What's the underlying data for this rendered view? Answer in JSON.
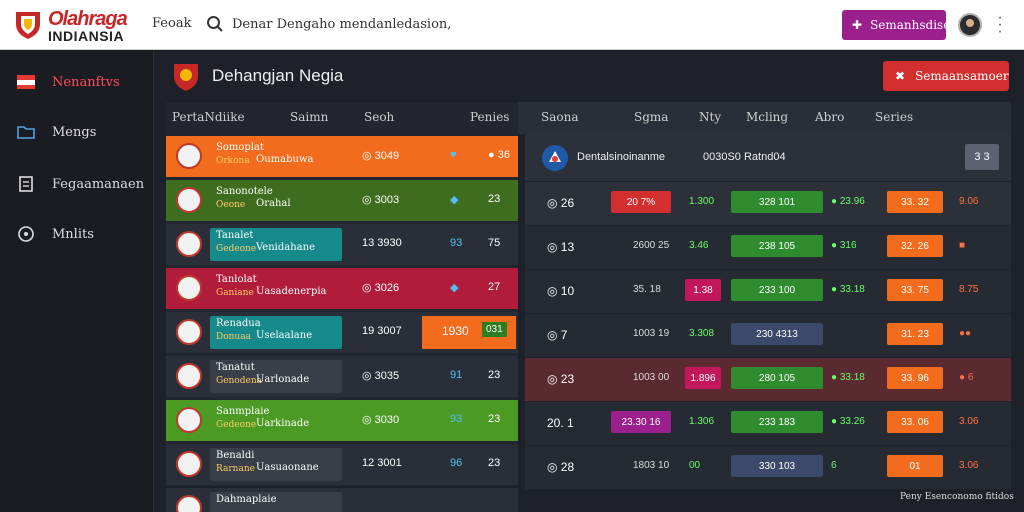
{
  "brand": {
    "line1": "Olahraga",
    "line2": "INDIANSIA"
  },
  "topnav": {
    "search_label": "Feoak",
    "search_value": "Denar Dengaho mendanledasion,",
    "action_button": "Semanhsdise"
  },
  "sidebar": {
    "items": [
      {
        "label": "Nenanftvs",
        "icon": "flag-icon",
        "active": true
      },
      {
        "label": "Mengs",
        "icon": "folder-icon",
        "active": false
      },
      {
        "label": "Fegaamanaen",
        "icon": "document-icon",
        "active": false
      },
      {
        "label": "Mnlits",
        "icon": "circle-info-icon",
        "active": false
      }
    ]
  },
  "main": {
    "title": "Dehangjan Negia",
    "header_button": "Semaansamoer"
  },
  "headers": {
    "left": [
      "PertaNdiike",
      "Saimn",
      "Seoh",
      "Penies"
    ],
    "right": [
      "Saona",
      "Sgma",
      "Nty",
      "Mcling",
      "Abro",
      "Series"
    ]
  },
  "left_rows": [
    {
      "t1": "Somoplat",
      "t2": "Orkona",
      "t3": "Oumabuwa",
      "score": "◎ 3049",
      "v1": "♥",
      "v2": "● 36",
      "color": "#f36b1c"
    },
    {
      "t1": "Sanonotele",
      "t2": "Oeone",
      "t3": "Orahal",
      "score": "◎ 3003",
      "v1": "◆",
      "v2": "23",
      "color": "#3f6d1f"
    },
    {
      "t1": "Tanalet",
      "t2": "Gedeone",
      "t3": "Venidahane",
      "score": "13 3930",
      "v1": "93",
      "v2": "75",
      "color": "#168a8a"
    },
    {
      "t1": "Tanlolat",
      "t2": "Ganiane",
      "t3": "Uasadenerpia",
      "score": "◎ 3026",
      "v1": "◆",
      "v2": "27",
      "color": "#b01c3a"
    },
    {
      "t1": "Renadua",
      "t2": "Donuaa",
      "t3": "Uselaalane",
      "score": "19 3007",
      "v1": "1930",
      "v2": "031",
      "color": "#168a8a"
    },
    {
      "t1": "Tanatut",
      "t2": "Genodena",
      "t3": "Uarlonade",
      "score": "◎ 3035",
      "v1": "91",
      "v2": "23",
      "color": "#3a3e48"
    },
    {
      "t1": "Sanmplaie",
      "t2": "Gedeone",
      "t3": "Uarkinade",
      "score": "◎ 3030",
      "v1": "93",
      "v2": "23",
      "color": "#4a9a23"
    },
    {
      "t1": "Benaldi",
      "t2": "Rarnane",
      "t3": "Uasuaonane",
      "score": "12 3001",
      "v1": "96",
      "v2": "23",
      "color": "#3a3e48"
    },
    {
      "t1": "Dahmaplaie",
      "t2": "",
      "t3": "",
      "score": "",
      "v1": "",
      "v2": "",
      "color": "#3a3e48"
    }
  ],
  "right_header": {
    "label": "Dentalsinoinanme",
    "value": "0030S0 Ratnd04",
    "badge": "3 3"
  },
  "right_rows": [
    {
      "id": "◎ 26",
      "a": "20 7%",
      "b": "1.300",
      "c": "328 101",
      "d": "● 23.96",
      "e": "33. 32",
      "f": "9.06"
    },
    {
      "id": "◎ 13",
      "a": "2600 25",
      "b": "3.46",
      "c": "238 105",
      "d": "● 316",
      "e": "32. 26",
      "f": "■"
    },
    {
      "id": "◎ 10",
      "a": "35. 18",
      "b": "1.38",
      "c": "233 100",
      "d": "● 33.18",
      "e": "33. 75",
      "f": "8.75"
    },
    {
      "id": "◎ 7",
      "a": "1003 19",
      "b": "3.308",
      "c": "230 4313",
      "d": "",
      "e": "31. 23",
      "f": "●●"
    },
    {
      "id": "◎ 23",
      "a": "1003 00",
      "b": "1.896",
      "c": "280 105",
      "d": "● 33.18",
      "e": "33. 96",
      "f": "● 6"
    },
    {
      "id": "20. 1",
      "a": "23.30 16",
      "b": "1.306",
      "c": "233 183",
      "d": "● 33.26",
      "e": "33. 06",
      "f": "3.06"
    },
    {
      "id": "◎ 28",
      "a": "1803 10",
      "b": "00",
      "c": "330 103",
      "d": "6",
      "e": "01",
      "f": "3.06"
    }
  ],
  "footer": "Peny Esenconomo fitidos",
  "colors": {
    "accent_purple": "#9c1f8e",
    "accent_red": "#d32f2f",
    "orange": "#f36b1c",
    "green": "#4a9a23",
    "teal": "#168a8a"
  }
}
